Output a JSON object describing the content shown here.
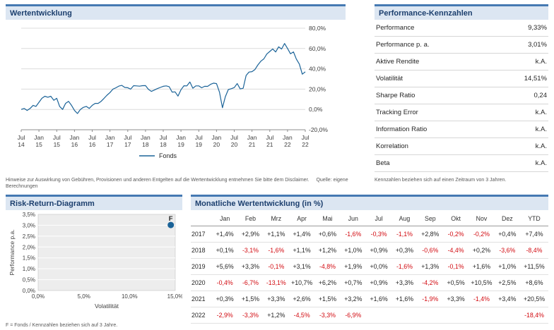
{
  "colors": {
    "accent_blue": "#4579b2",
    "header_bg": "#dce6f2",
    "title_text": "#1c3f6e",
    "line_blue": "#1b6398",
    "negative_red": "#d20a10",
    "grid_gray": "#dcdcdc"
  },
  "performance_panel": {
    "title": "Wertentwicklung"
  },
  "kennzahlen_panel": {
    "title": "Performance-Kennzahlen",
    "rows": [
      {
        "label": "Performance",
        "value": "9,33%"
      },
      {
        "label": "Performance p. a.",
        "value": "3,01%"
      },
      {
        "label": "Aktive Rendite",
        "value": "k.A."
      },
      {
        "label": "Volatilität",
        "value": "14,51%"
      },
      {
        "label": "Sharpe Ratio",
        "value": "0,24"
      },
      {
        "label": "Tracking Error",
        "value": "k.A."
      },
      {
        "label": "Information Ratio",
        "value": "k.A."
      },
      {
        "label": "Korrelation",
        "value": "k.A."
      },
      {
        "label": "Beta",
        "value": "k.A."
      }
    ]
  },
  "disclaimers": {
    "left": "Hinweise zur Auswirkung von Gebühren, Provisionen und anderen Entgelten auf die Wertentwicklung entnehmen Sie bitte dem Disclaimer.",
    "source": "Quelle: eigene Berechnungen",
    "right": "Kennzahlen beziehen sich auf einen Zeitraum von 3 Jahren."
  },
  "risk_return_panel": {
    "title": "Risk-Return-Diagramm",
    "footnote": "F = Fonds / Kennzahlen beziehen sich auf 3 Jahre."
  },
  "monthly_panel": {
    "title": "Monatliche Wertentwicklung (in %)"
  },
  "chart_data": [
    {
      "type": "line",
      "title": "Wertentwicklung",
      "xlabel": "",
      "ylabel": "",
      "unit": "%",
      "ylim": [
        -20,
        80
      ],
      "grid": true,
      "legend_position": "bottom",
      "yticks": [
        {
          "value": 80,
          "label": "80,0%"
        },
        {
          "value": 60,
          "label": "60,0%"
        },
        {
          "value": 40,
          "label": "40,0%"
        },
        {
          "value": 20,
          "label": "20,0%"
        },
        {
          "value": 0,
          "label": "0,0%"
        },
        {
          "value": -20,
          "label": "-20,0%"
        }
      ],
      "xticks": [
        {
          "index": 0,
          "month": "Jul",
          "year": "14"
        },
        {
          "index": 6,
          "month": "Jan",
          "year": "15"
        },
        {
          "index": 12,
          "month": "Jul",
          "year": "15"
        },
        {
          "index": 18,
          "month": "Jan",
          "year": "16"
        },
        {
          "index": 24,
          "month": "Jul",
          "year": "16"
        },
        {
          "index": 30,
          "month": "Jan",
          "year": "17"
        },
        {
          "index": 36,
          "month": "Jul",
          "year": "17"
        },
        {
          "index": 42,
          "month": "Jan",
          "year": "18"
        },
        {
          "index": 48,
          "month": "Jul",
          "year": "18"
        },
        {
          "index": 54,
          "month": "Jan",
          "year": "19"
        },
        {
          "index": 60,
          "month": "Jul",
          "year": "19"
        },
        {
          "index": 66,
          "month": "Jan",
          "year": "20"
        },
        {
          "index": 72,
          "month": "Jul",
          "year": "20"
        },
        {
          "index": 78,
          "month": "Jan",
          "year": "21"
        },
        {
          "index": 84,
          "month": "Jul",
          "year": "21"
        },
        {
          "index": 90,
          "month": "Jan",
          "year": "22"
        },
        {
          "index": 96,
          "month": "Jul",
          "year": "22"
        }
      ],
      "series": [
        {
          "name": "Fonds",
          "values": [
            0,
            1,
            -1,
            1,
            4,
            3,
            7,
            11,
            13,
            12,
            13,
            9,
            11,
            3,
            0,
            6,
            8,
            4,
            -1,
            -4,
            0,
            2,
            3,
            1,
            4,
            6,
            6,
            8,
            11,
            14,
            16.6,
            20,
            21.3,
            23,
            23.7,
            21.7,
            21.4,
            20,
            23.4,
            23.2,
            22.9,
            23.4,
            23.5,
            19.7,
            17.8,
            19.1,
            20.5,
            21.7,
            22.8,
            23.2,
            22.4,
            17.1,
            17.3,
            13.1,
            19.4,
            23.3,
            23.2,
            27,
            20.9,
            23.2,
            23.2,
            21.3,
            22.8,
            22.7,
            24.7,
            25.9,
            25.4,
            17,
            1.7,
            12.6,
            19.6,
            20.4,
            21.5,
            25.5,
            20.2,
            20.8,
            33.5,
            36.8,
            37.2,
            39.3,
            43.9,
            47.6,
            49.8,
            54.6,
            57.1,
            59.6,
            56.6,
            61.7,
            59.5,
            64.9,
            60.1,
            54.8,
            56.7,
            49.6,
            44.7,
            34.7,
            37
          ]
        }
      ]
    },
    {
      "type": "scatter",
      "title": "Risk-Return-Diagramm",
      "xlabel": "Volatilität",
      "ylabel": "Performance p.a.",
      "xlim": [
        0,
        15
      ],
      "ylim": [
        0,
        3.5
      ],
      "xticks": [
        {
          "value": 0,
          "label": "0,0%"
        },
        {
          "value": 5,
          "label": "5,0%"
        },
        {
          "value": 10,
          "label": "10,0%"
        },
        {
          "value": 15,
          "label": "15,0%"
        }
      ],
      "yticks": [
        {
          "value": 0,
          "label": "0,0%"
        },
        {
          "value": 0.5,
          "label": "0,5%"
        },
        {
          "value": 1,
          "label": "1,0%"
        },
        {
          "value": 1.5,
          "label": "1,5%"
        },
        {
          "value": 2,
          "label": "2,0%"
        },
        {
          "value": 2.5,
          "label": "2,5%"
        },
        {
          "value": 3,
          "label": "3,0%"
        },
        {
          "value": 3.5,
          "label": "3,5%"
        }
      ],
      "points": [
        {
          "label": "F",
          "x": 14.51,
          "y": 3.01
        }
      ]
    },
    {
      "type": "table",
      "title": "Monatliche Wertentwicklung (in %)",
      "columns": [
        "",
        "Jan",
        "Feb",
        "Mrz",
        "Apr",
        "Mai",
        "Jun",
        "Jul",
        "Aug",
        "Sep",
        "Okt",
        "Nov",
        "Dez",
        "YTD"
      ],
      "rows": [
        {
          "year": "2017",
          "values": [
            "+1,4%",
            "+2,9%",
            "+1,1%",
            "+1,4%",
            "+0,6%",
            "-1,6%",
            "-0,3%",
            "-1,1%",
            "+2,8%",
            "-0,2%",
            "-0,2%",
            "+0,4%",
            "+7,4%"
          ]
        },
        {
          "year": "2018",
          "values": [
            "+0,1%",
            "-3,1%",
            "-1,6%",
            "+1,1%",
            "+1,2%",
            "+1,0%",
            "+0,9%",
            "+0,3%",
            "-0,6%",
            "-4,4%",
            "+0,2%",
            "-3,6%",
            "-8,4%"
          ]
        },
        {
          "year": "2019",
          "values": [
            "+5,6%",
            "+3,3%",
            "-0,1%",
            "+3,1%",
            "-4,8%",
            "+1,9%",
            "+0,0%",
            "-1,6%",
            "+1,3%",
            "-0,1%",
            "+1,6%",
            "+1,0%",
            "+11,5%"
          ]
        },
        {
          "year": "2020",
          "values": [
            "-0,4%",
            "-6,7%",
            "-13,1%",
            "+10,7%",
            "+6,2%",
            "+0,7%",
            "+0,9%",
            "+3,3%",
            "-4,2%",
            "+0,5%",
            "+10,5%",
            "+2,5%",
            "+8,6%"
          ]
        },
        {
          "year": "2021",
          "values": [
            "+0,3%",
            "+1,5%",
            "+3,3%",
            "+2,6%",
            "+1,5%",
            "+3,2%",
            "+1,6%",
            "+1,6%",
            "-1,9%",
            "+3,3%",
            "-1,4%",
            "+3,4%",
            "+20,5%"
          ]
        },
        {
          "year": "2022",
          "values": [
            "-2,9%",
            "-3,3%",
            "+1,2%",
            "-4,5%",
            "-3,3%",
            "-6,9%",
            "",
            "",
            "",
            "",
            "",
            "",
            "-18,4%"
          ]
        }
      ]
    }
  ]
}
